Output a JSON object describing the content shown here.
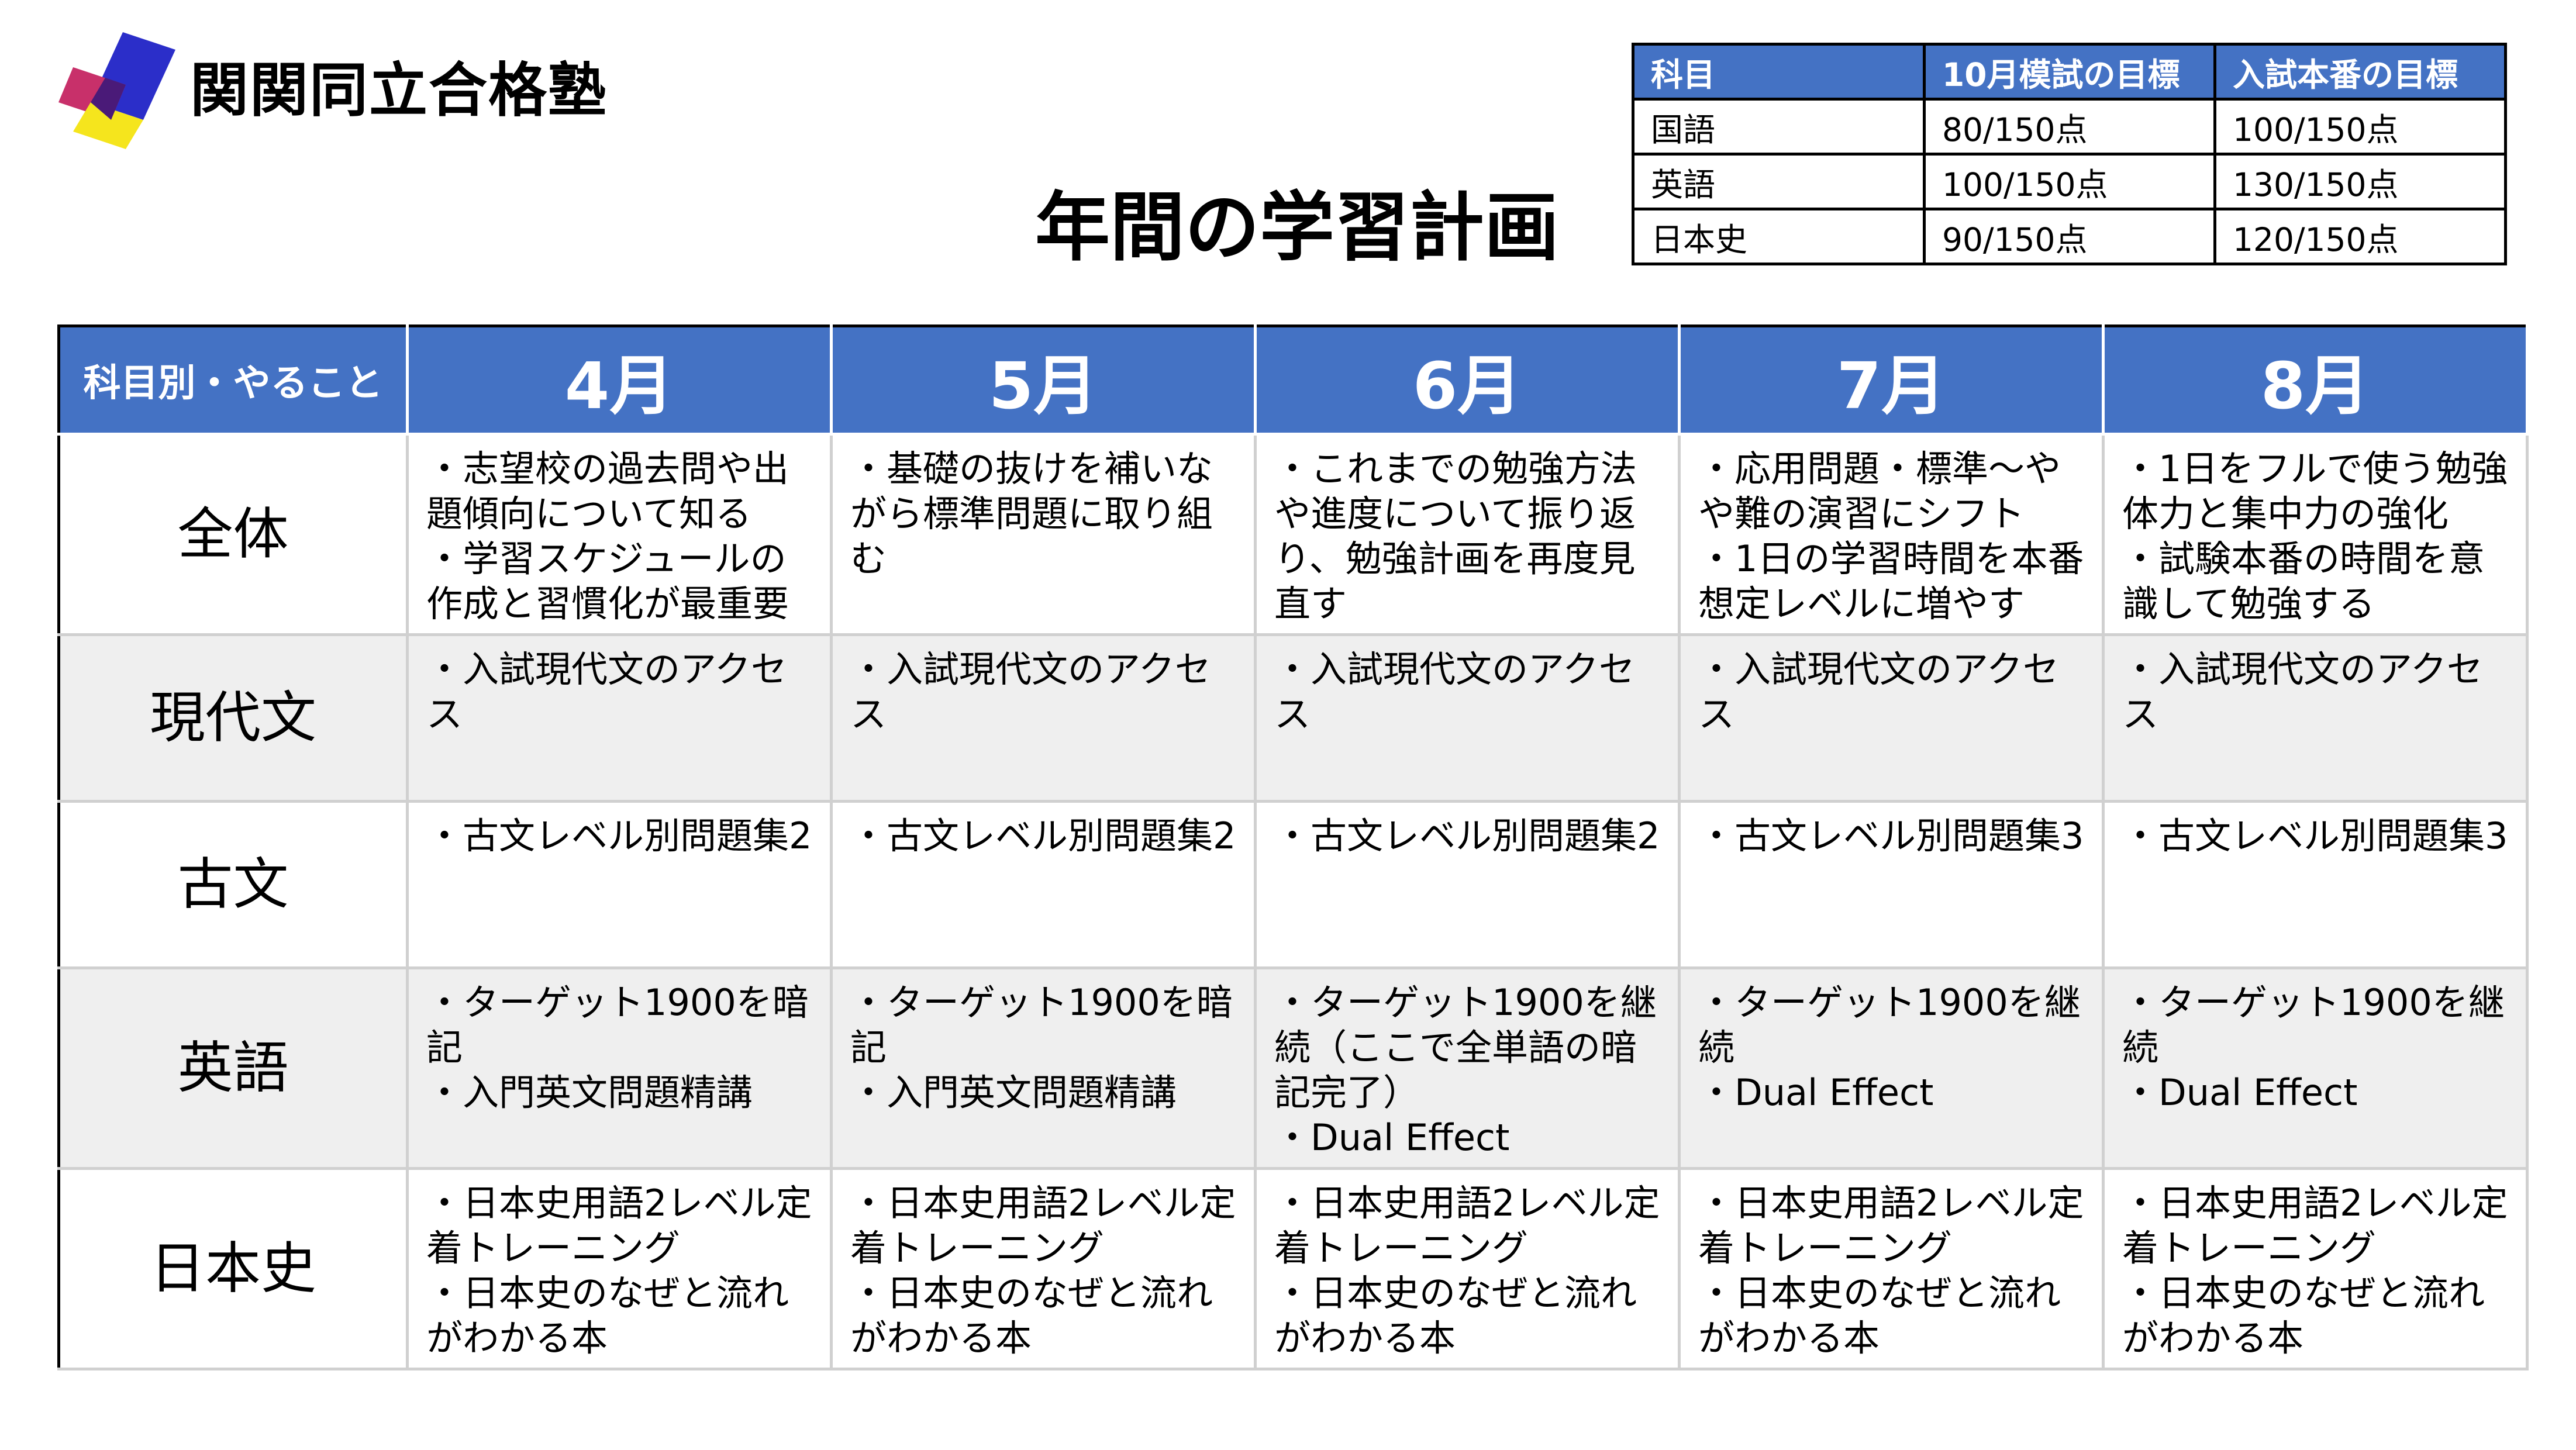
{
  "brand": {
    "name": "関関同立合格塾",
    "logo_colors": [
      "#2b2ec9",
      "#c8306a",
      "#f5e51d",
      "#4a1a78"
    ]
  },
  "page_title": "年間の学習計画",
  "targets": {
    "headers": [
      "科目",
      "10月模試の目標",
      "入試本番の目標"
    ],
    "rows": [
      [
        "国語",
        "80/150点",
        "100/150点"
      ],
      [
        "英語",
        "100/150点",
        "130/150点"
      ],
      [
        "日本史",
        "90/150点",
        "120/150点"
      ]
    ]
  },
  "plan": {
    "corner_label": "科目別・やること",
    "months": [
      "4月",
      "5月",
      "6月",
      "7月",
      "8月"
    ],
    "rows": [
      {
        "label": "全体",
        "cells": [
          [
            "・志望校の過去問や出題傾向について知る",
            "・学習スケジュールの作成と習慣化が最重要"
          ],
          [
            "・基礎の抜けを補いながら標準問題に取り組む"
          ],
          [
            "・これまでの勉強方法や進度について振り返り、勉強計画を再度見直す"
          ],
          [
            "・応用問題・標準～やや難の演習にシフト",
            "・1日の学習時間を本番想定レベルに増やす"
          ],
          [
            "・1日をフルで使う勉強体力と集中力の強化",
            "・試験本番の時間を意識して勉強する"
          ]
        ]
      },
      {
        "label": "現代文",
        "cells": [
          [
            "・入試現代文のアクセス"
          ],
          [
            "・入試現代文のアクセス"
          ],
          [
            "・入試現代文のアクセス"
          ],
          [
            "・入試現代文のアクセス"
          ],
          [
            "・入試現代文のアクセス"
          ]
        ]
      },
      {
        "label": "古文",
        "cells": [
          [
            "・古文レベル別問題集2"
          ],
          [
            "・古文レベル別問題集2"
          ],
          [
            "・古文レベル別問題集2"
          ],
          [
            "・古文レベル別問題集3"
          ],
          [
            "・古文レベル別問題集3"
          ]
        ]
      },
      {
        "label": "英語",
        "cells": [
          [
            "・ターゲット1900を暗記",
            "・入門英文問題精講"
          ],
          [
            "・ターゲット1900を暗記",
            "・入門英文問題精講"
          ],
          [
            "・ターゲット1900を継続（ここで全単語の暗記完了）",
            "・Dual Effect"
          ],
          [
            "・ターゲット1900を継続",
            "・Dual Effect"
          ],
          [
            "・ターゲット1900を継続",
            "・Dual Effect"
          ]
        ]
      },
      {
        "label": "日本史",
        "cells": [
          [
            "・日本史用語2レベル定着トレーニング",
            "・日本史のなぜと流れがわかる本"
          ],
          [
            "・日本史用語2レベル定着トレーニング",
            "・日本史のなぜと流れがわかる本"
          ],
          [
            "・日本史用語2レベル定着トレーニング",
            "・日本史のなぜと流れがわかる本"
          ],
          [
            "・日本史用語2レベル定着トレーニング",
            "・日本史のなぜと流れがわかる本"
          ],
          [
            "・日本史用語2レベル定着トレーニング",
            "・日本史のなぜと流れがわかる本"
          ]
        ]
      }
    ]
  }
}
